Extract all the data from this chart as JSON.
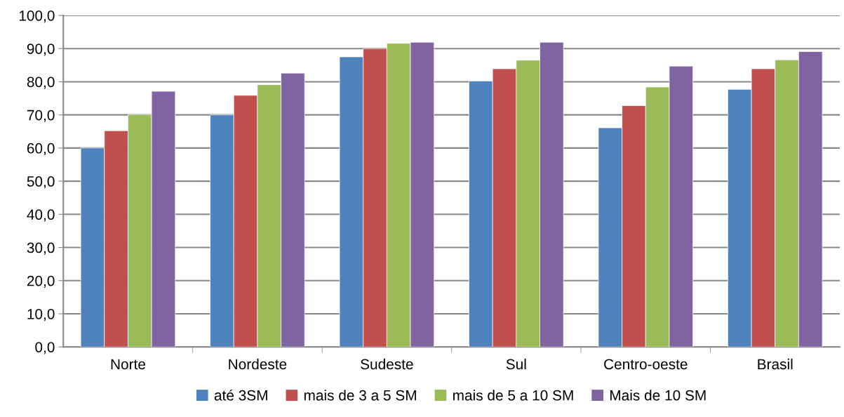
{
  "chart_data": {
    "type": "bar",
    "categories": [
      "Norte",
      "Nordeste",
      "Sudeste",
      "Sul",
      "Centro-oeste",
      "Brasil"
    ],
    "series": [
      {
        "name": "até 3SM",
        "color": "#4f81bd",
        "values": [
          60.0,
          70.0,
          87.5,
          80.2,
          66.1,
          77.7
        ]
      },
      {
        "name": "mais de 3 a 5 SM",
        "color": "#c0504d",
        "values": [
          65.2,
          75.9,
          90.0,
          83.9,
          72.8,
          83.9
        ]
      },
      {
        "name": "mais de 5 a 10 SM",
        "color": "#9bbb59",
        "values": [
          70.1,
          79.1,
          91.6,
          86.5,
          78.4,
          86.6
        ]
      },
      {
        "name": "Mais de 10 SM",
        "color": "#8064a2",
        "values": [
          77.1,
          82.6,
          91.9,
          91.9,
          84.7,
          89.1
        ]
      }
    ],
    "ylim": [
      0,
      100
    ],
    "yticks": [
      {
        "value": 0,
        "label": "0,0"
      },
      {
        "value": 10,
        "label": "10,0"
      },
      {
        "value": 20,
        "label": "20,0"
      },
      {
        "value": 30,
        "label": "30,0"
      },
      {
        "value": 40,
        "label": "40,0"
      },
      {
        "value": 50,
        "label": "50,0"
      },
      {
        "value": 60,
        "label": "60,0"
      },
      {
        "value": 70,
        "label": "70,0"
      },
      {
        "value": 80,
        "label": "80,0"
      },
      {
        "value": 90,
        "label": "90,0"
      },
      {
        "value": 100,
        "label": "100,0"
      }
    ],
    "grid": "y",
    "legend": "bottom"
  }
}
